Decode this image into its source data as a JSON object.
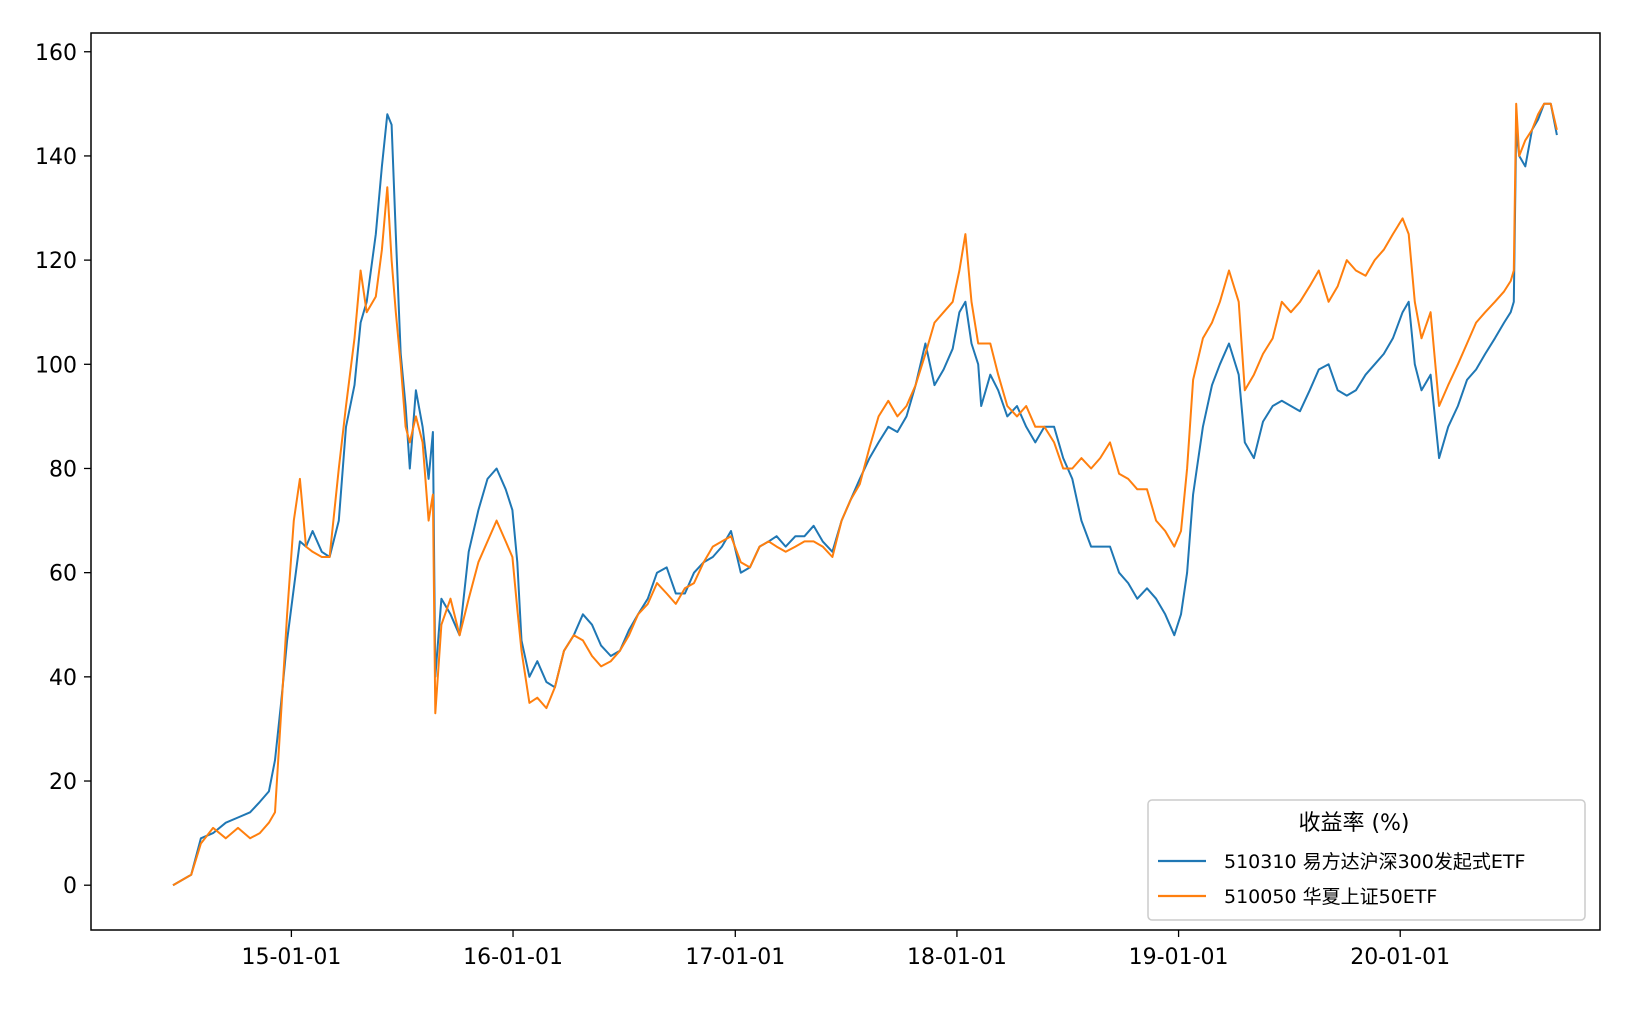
{
  "chart_data": {
    "type": "line",
    "title": "",
    "xlabel": "",
    "ylabel": "",
    "ylim": [
      -8.6,
      163.6
    ],
    "xlim": [
      "2014-02-05",
      "2020-11-25"
    ],
    "x_ticks": [
      "2015-01-01",
      "2016-01-01",
      "2017-01-01",
      "2018-01-01",
      "2019-01-01",
      "2020-01-01"
    ],
    "x_tick_labels": [
      "15-01-01",
      "16-01-01",
      "17-01-01",
      "18-01-01",
      "19-01-01",
      "20-01-01"
    ],
    "y_ticks": [
      0,
      20,
      40,
      60,
      80,
      100,
      120,
      140,
      160
    ],
    "y_tick_labels": [
      "0",
      "20",
      "40",
      "60",
      "80",
      "100",
      "120",
      "140",
      "160"
    ],
    "grid": false,
    "legend": {
      "title": "收益率 (%)",
      "placement": "lower-right"
    },
    "colors": {
      "series1": "#1f77b4",
      "series2": "#ff7f0e"
    },
    "series": [
      {
        "name": "510310 易方达沪深300发起式ETF",
        "x": [
          "2014-06-20",
          "2014-07-05",
          "2014-07-20",
          "2014-08-05",
          "2014-08-25",
          "2014-09-15",
          "2014-10-05",
          "2014-10-25",
          "2014-11-10",
          "2014-11-25",
          "2014-12-05",
          "2014-12-15",
          "2014-12-25",
          "2015-01-05",
          "2015-01-15",
          "2015-01-25",
          "2015-02-05",
          "2015-02-20",
          "2015-03-05",
          "2015-03-20",
          "2015-04-01",
          "2015-04-15",
          "2015-04-25",
          "2015-05-05",
          "2015-05-20",
          "2015-05-30",
          "2015-06-08",
          "2015-06-15",
          "2015-06-22",
          "2015-06-30",
          "2015-07-08",
          "2015-07-15",
          "2015-07-25",
          "2015-08-05",
          "2015-08-15",
          "2015-08-22",
          "2015-08-26",
          "2015-09-05",
          "2015-09-20",
          "2015-10-05",
          "2015-10-20",
          "2015-11-05",
          "2015-11-20",
          "2015-12-05",
          "2015-12-20",
          "2015-12-31",
          "2016-01-08",
          "2016-01-15",
          "2016-01-28",
          "2016-02-10",
          "2016-02-25",
          "2016-03-10",
          "2016-03-25",
          "2016-04-10",
          "2016-04-25",
          "2016-05-10",
          "2016-05-25",
          "2016-06-10",
          "2016-06-25",
          "2016-07-10",
          "2016-07-25",
          "2016-08-10",
          "2016-08-25",
          "2016-09-10",
          "2016-09-25",
          "2016-10-10",
          "2016-10-25",
          "2016-11-10",
          "2016-11-25",
          "2016-12-10",
          "2016-12-25",
          "2017-01-10",
          "2017-01-25",
          "2017-02-10",
          "2017-02-25",
          "2017-03-10",
          "2017-03-25",
          "2017-04-10",
          "2017-04-25",
          "2017-05-10",
          "2017-05-25",
          "2017-06-10",
          "2017-06-25",
          "2017-07-10",
          "2017-07-25",
          "2017-08-10",
          "2017-08-25",
          "2017-09-10",
          "2017-09-25",
          "2017-10-10",
          "2017-10-25",
          "2017-11-10",
          "2017-11-25",
          "2017-12-10",
          "2017-12-25",
          "2018-01-05",
          "2018-01-15",
          "2018-01-25",
          "2018-02-05",
          "2018-02-10",
          "2018-02-25",
          "2018-03-10",
          "2018-03-25",
          "2018-04-10",
          "2018-04-25",
          "2018-05-10",
          "2018-05-25",
          "2018-06-10",
          "2018-06-25",
          "2018-07-10",
          "2018-07-25",
          "2018-08-10",
          "2018-08-25",
          "2018-09-10",
          "2018-09-25",
          "2018-10-10",
          "2018-10-25",
          "2018-11-10",
          "2018-11-25",
          "2018-12-10",
          "2018-12-25",
          "2019-01-05",
          "2019-01-15",
          "2019-01-25",
          "2019-02-10",
          "2019-02-25",
          "2019-03-10",
          "2019-03-25",
          "2019-04-10",
          "2019-04-20",
          "2019-05-05",
          "2019-05-20",
          "2019-06-05",
          "2019-06-20",
          "2019-07-05",
          "2019-07-20",
          "2019-08-05",
          "2019-08-20",
          "2019-09-05",
          "2019-09-20",
          "2019-10-05",
          "2019-10-20",
          "2019-11-05",
          "2019-11-20",
          "2019-12-05",
          "2019-12-20",
          "2020-01-05",
          "2020-01-15",
          "2020-01-25",
          "2020-02-05",
          "2020-02-20",
          "2020-03-05",
          "2020-03-20",
          "2020-04-05",
          "2020-04-20",
          "2020-05-05",
          "2020-05-20",
          "2020-06-05",
          "2020-06-20",
          "2020-07-01",
          "2020-07-06",
          "2020-07-10",
          "2020-07-15",
          "2020-07-25",
          "2020-08-05",
          "2020-08-15",
          "2020-08-25",
          "2020-09-05",
          "2020-09-15"
        ],
        "values": [
          0,
          1,
          2,
          9,
          10,
          12,
          13,
          14,
          16,
          18,
          24,
          35,
          47,
          57,
          66,
          65,
          68,
          64,
          63,
          70,
          88,
          96,
          108,
          112,
          125,
          138,
          148,
          146,
          125,
          102,
          92,
          80,
          95,
          88,
          78,
          87,
          40,
          55,
          52,
          48,
          64,
          72,
          78,
          80,
          76,
          72,
          62,
          47,
          40,
          43,
          39,
          38,
          45,
          48,
          52,
          50,
          46,
          44,
          45,
          49,
          52,
          55,
          60,
          61,
          56,
          56,
          60,
          62,
          63,
          65,
          68,
          60,
          61,
          65,
          66,
          67,
          65,
          67,
          67,
          69,
          66,
          64,
          70,
          74,
          78,
          82,
          85,
          88,
          87,
          90,
          96,
          104,
          96,
          99,
          103,
          110,
          112,
          104,
          100,
          92,
          98,
          95,
          90,
          92,
          88,
          85,
          88,
          88,
          82,
          78,
          70,
          65,
          65,
          65,
          60,
          58,
          55,
          57,
          55,
          52,
          48,
          52,
          60,
          75,
          88,
          96,
          100,
          104,
          98,
          85,
          82,
          89,
          92,
          93,
          92,
          91,
          95,
          99,
          100,
          95,
          94,
          95,
          98,
          100,
          102,
          105,
          110,
          112,
          100,
          95,
          98,
          82,
          88,
          92,
          97,
          99,
          102,
          105,
          108,
          110,
          112,
          145,
          140,
          138,
          145,
          147,
          150,
          150,
          144
        ],
        "label": "510310 易方达沪深300发起式ETF"
      },
      {
        "name": "510050 华夏上证50ETF",
        "x": [
          "2014-06-20",
          "2014-07-05",
          "2014-07-20",
          "2014-08-05",
          "2014-08-25",
          "2014-09-15",
          "2014-10-05",
          "2014-10-25",
          "2014-11-10",
          "2014-11-25",
          "2014-12-05",
          "2014-12-15",
          "2014-12-25",
          "2015-01-05",
          "2015-01-15",
          "2015-01-25",
          "2015-02-05",
          "2015-02-20",
          "2015-03-05",
          "2015-03-20",
          "2015-04-01",
          "2015-04-15",
          "2015-04-25",
          "2015-05-05",
          "2015-05-20",
          "2015-05-30",
          "2015-06-08",
          "2015-06-15",
          "2015-06-22",
          "2015-06-30",
          "2015-07-08",
          "2015-07-15",
          "2015-07-25",
          "2015-08-05",
          "2015-08-15",
          "2015-08-22",
          "2015-08-26",
          "2015-09-05",
          "2015-09-20",
          "2015-10-05",
          "2015-10-20",
          "2015-11-05",
          "2015-11-20",
          "2015-12-05",
          "2015-12-20",
          "2015-12-31",
          "2016-01-08",
          "2016-01-15",
          "2016-01-28",
          "2016-02-10",
          "2016-02-25",
          "2016-03-10",
          "2016-03-25",
          "2016-04-10",
          "2016-04-25",
          "2016-05-10",
          "2016-05-25",
          "2016-06-10",
          "2016-06-25",
          "2016-07-10",
          "2016-07-25",
          "2016-08-10",
          "2016-08-25",
          "2016-09-10",
          "2016-09-25",
          "2016-10-10",
          "2016-10-25",
          "2016-11-10",
          "2016-11-25",
          "2016-12-10",
          "2016-12-25",
          "2017-01-10",
          "2017-01-25",
          "2017-02-10",
          "2017-02-25",
          "2017-03-10",
          "2017-03-25",
          "2017-04-10",
          "2017-04-25",
          "2017-05-10",
          "2017-05-25",
          "2017-06-10",
          "2017-06-25",
          "2017-07-10",
          "2017-07-25",
          "2017-08-10",
          "2017-08-25",
          "2017-09-10",
          "2017-09-25",
          "2017-10-10",
          "2017-10-25",
          "2017-11-10",
          "2017-11-25",
          "2017-12-10",
          "2017-12-25",
          "2018-01-05",
          "2018-01-15",
          "2018-01-25",
          "2018-02-05",
          "2018-02-10",
          "2018-02-25",
          "2018-03-10",
          "2018-03-25",
          "2018-04-10",
          "2018-04-25",
          "2018-05-10",
          "2018-05-25",
          "2018-06-10",
          "2018-06-25",
          "2018-07-10",
          "2018-07-25",
          "2018-08-10",
          "2018-08-25",
          "2018-09-10",
          "2018-09-25",
          "2018-10-10",
          "2018-10-25",
          "2018-11-10",
          "2018-11-25",
          "2018-12-10",
          "2018-12-25",
          "2019-01-05",
          "2019-01-15",
          "2019-01-25",
          "2019-02-10",
          "2019-02-25",
          "2019-03-10",
          "2019-03-25",
          "2019-04-10",
          "2019-04-20",
          "2019-05-05",
          "2019-05-20",
          "2019-06-05",
          "2019-06-20",
          "2019-07-05",
          "2019-07-20",
          "2019-08-05",
          "2019-08-20",
          "2019-09-05",
          "2019-09-20",
          "2019-10-05",
          "2019-10-20",
          "2019-11-05",
          "2019-11-20",
          "2019-12-05",
          "2019-12-20",
          "2020-01-05",
          "2020-01-15",
          "2020-01-25",
          "2020-02-05",
          "2020-02-20",
          "2020-03-05",
          "2020-03-20",
          "2020-04-05",
          "2020-04-20",
          "2020-05-05",
          "2020-05-20",
          "2020-06-05",
          "2020-06-20",
          "2020-07-01",
          "2020-07-06",
          "2020-07-10",
          "2020-07-15",
          "2020-07-25",
          "2020-08-05",
          "2020-08-15",
          "2020-08-25",
          "2020-09-05",
          "2020-09-15"
        ],
        "values": [
          0,
          1,
          2,
          8,
          11,
          9,
          11,
          9,
          10,
          12,
          14,
          33,
          52,
          70,
          78,
          65,
          64,
          63,
          63,
          80,
          92,
          105,
          118,
          110,
          113,
          122,
          134,
          120,
          110,
          100,
          88,
          85,
          90,
          85,
          70,
          75,
          33,
          50,
          55,
          48,
          55,
          62,
          66,
          70,
          66,
          63,
          53,
          45,
          35,
          36,
          34,
          38,
          45,
          48,
          47,
          44,
          42,
          43,
          45,
          48,
          52,
          54,
          58,
          56,
          54,
          57,
          58,
          62,
          65,
          66,
          67,
          62,
          61,
          65,
          66,
          65,
          64,
          65,
          66,
          66,
          65,
          63,
          70,
          74,
          77,
          84,
          90,
          93,
          90,
          92,
          96,
          102,
          108,
          110,
          112,
          118,
          125,
          112,
          104,
          104,
          104,
          98,
          92,
          90,
          92,
          88,
          88,
          85,
          80,
          80,
          82,
          80,
          82,
          85,
          79,
          78,
          76,
          76,
          70,
          68,
          65,
          68,
          80,
          97,
          105,
          108,
          112,
          118,
          112,
          95,
          98,
          102,
          105,
          112,
          110,
          112,
          115,
          118,
          112,
          115,
          120,
          118,
          117,
          120,
          122,
          125,
          128,
          125,
          112,
          105,
          110,
          92,
          96,
          100,
          104,
          108,
          110,
          112,
          114,
          116,
          118,
          150,
          140,
          143,
          145,
          148,
          150,
          150,
          145
        ],
        "label": "510050 华夏上证50ETF"
      }
    ]
  }
}
